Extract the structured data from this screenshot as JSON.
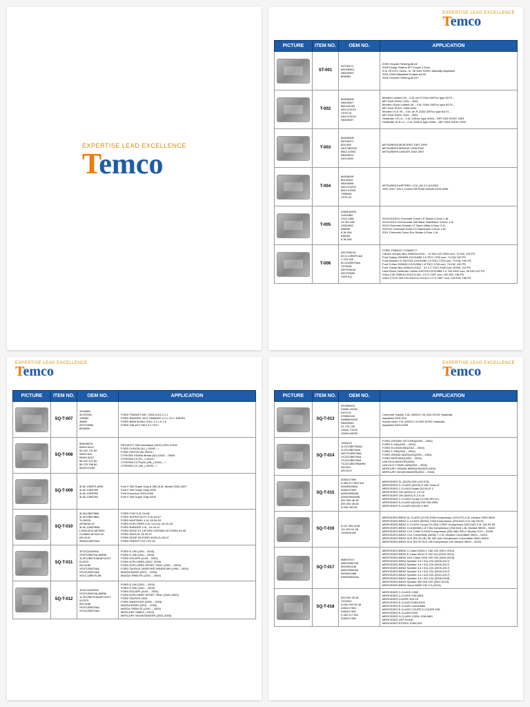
{
  "brand": {
    "tagline": "EXPERTISE LEAD EXCELLENCE",
    "name_t": "T",
    "name_rest": "emco"
  },
  "headers": {
    "picture": "PICTURE",
    "item": "ITEM NO.",
    "oem": "OEM NO.",
    "app": "APPLICATION"
  },
  "table_t": [
    {
      "item": "ST-001",
      "oem": "E5T08171\nMD336501\nN5405009\nM56081",
      "app": "2005 Chrysler Sebring All All\n2005 Dodge Stratus R/T Coupe 2-Door\n3.0L 2972CC 181cu. In. V6 GAS SOHC Naturally Aspirated\n2001-2005 Mitsubishi Eclipse All All\n2004 Chrysler Sebring All All *"
    },
    {
      "item": "T-002",
      "oem": "Md336482\nN5405007\n881242033\nADC474210\nC975-15\nADC474210\nN5405007",
      "app": "Montero Limited V6 – 3.5L vin R 215ci 3497cc type 6G74 –\nMFI GAS SOHC 2001 - 2005\nMontero Sport Limited V6 – 3.5L 215ci 3497cc type 6G74 –\nMFI GAS SOHC 1999-2003\nMontero XLS V6 – 3.0L vin R 215ci 3497cc type 6G74 –\nMFI GAS SOHC 2001 - 2002\nOutlander LS L4 – 2.4L 2351cc type 4G64 – MFI GAS SOHC 2003\nOutlander XLS L4 – 2.4L 2351cc type 4G64 – MFI GAS SOHC 2003"
    },
    {
      "item": "T-003",
      "oem": "Md343605\nE5T08471\n829-948\nAA17460020\n8812-42004\nN5405010\nEAS-5502",
      "app": "MITSUBISHI MONTERO 1997-1999\nMITSUBISHI MIRAGE 1998-2002\nMITSUBISHI LANCER 2002-2007"
    },
    {
      "item": "T-004",
      "oem": "Md336481\nMA-M004\nN5405006\nADC474203\n8812-42025\n7585006\nC975-10",
      "app": "MITSUBISHI AIRTREK I (CU_W) 2.0 (CU2W)\n1997-2007 100 4 Closed Off-Road Vehicle 2003-2006"
    },
    {
      "item": "T-005",
      "oem": "0280218254\n11301682\n1310-1682\n13 301 682\n13301682\n836006\n8 36 006\n836005\n8 36 005",
      "app": "2014/13/12/11 Chevrolet Cruze LS Sedan 4-Door 1.8L\n2014/13/12 /11Chevrolet Volt Base Hatchback 4-Door 1.4L\n2013 Chevrolet Orlando LT Sport Utility 4-Door 2.4L\n2013/12 Chevrolet Sonic LS Hatchback 4-Door 1.8L\n2011 Chevrolet Cruze Eco Sedan 4-Door 1.4L"
    },
    {
      "item": "T-006",
      "oem": "AFH70M-54\n6C11-12B579-AA\n1 376 235\n6C1112B579AA\n1376235\nAFH70M-54\nAFH70M54\n1920 KQ",
      "app": "FORD TRANSIT CONNECT\nCitroen Jumper Bus 2006/04-2011/... 12 903 120 3339 ccm, 74 KW, 100 PS\nFord Galaxy 2006/05-XXXX/MM 1.8 TDCi 1753 ccm, 74 KW 100 PS\nFord Mondeo IV 2007/03-XXXX/MM 1.8 TDCi 1753 ccm, 74 KW, 100 PS\nFord S-Max 2006/05-XXXX/MM 1.8 TDCi 1753 ccm, 74 KW, 100 PS\nFord Transit Bus 2006/04-2012/.. XX 2.2 TDCi 2198 ccm, 81KW, 110 PS\nLand Rover Defender Cabrio 2007/09-XXXX/MM 2.4 Td4 2402 ccm, 90 KW 122 PS\nVolvo C30 2006/10-2012/12 ALL 2.0 D 1997 ccm, 100 KW, 136 PS\nVolvo V70 III 2007/10-2012/12 D4 ALL 2.0 D 1997 ccm, 100 KW, 136 PS"
    }
  ],
  "table_sq_a": [
    {
      "item": "SQ-T-007",
      "oem": "1516668\n30757655\n135089\n38894\nAFH70M83\n8030830",
      "app": "FORD TRANSIT MK7 2006-2013 2.2 L\nFORD RANGER 2012 ONWARD 2.2 L 3.2 L DIESEL\nFORD BMW B-MAX 2012 1.0 1.5 1.6\nFORD GALAXY MK3 2.0 TDCI"
    },
    {
      "item": "SQ-T-008",
      "oem": "5WK96031\n5WK9 631Z\n96 422 121 80\n5WK9 631\n5WK9 631Z\n96 422 121 80\n96 275 336 80\n9642212180",
      "app": "PEUGEOT 206 Hatchback (2A/C) 2001-20011\nFORD FUSION (JU_) 02/08 – /\nFORD FIESTA Van 05/03-/\nCITROEN XSARA Break (N2) 03/01 – 05/06\nCITROEN C3 (FC_) 02/02-/\nCITROEN C3 Pluriel (HB_) 04/04 – /\nCITROEN C2 (JM_) 03/05 – /"
    },
    {
      "item": "SQ-T-009",
      "oem": "3L3Z-12B579-ARM\n3L3Z-12B579B\n3L3Z-12B579B\n3L3Z-12B579A",
      "app": "Ford F-350 Super Duty 8-363 (6.0L diesel) 2003-2007\nFord F-350 Super Duty 2005\nFord Excursion 2003-2005\nFord F-450 Super Duty 2003"
    },
    {
      "item": "SQ-T-010",
      "oem": "3L3A12B579BA\n3L3F12B579BA\n74-50031\nAFH60M-19\n3L3Z-12B579BA\nL3H513215 MF0930\n2133654 AF010140\nAFL5131\n3W4Z12B579AC",
      "app": "FORD F150 5.4L 04-08\nFORD SUPER DUTY 5.4L 05-07\nFORD MUSTANG 4.0L V6 06-09\nFORD EXPLORER 4.0L V4,4.6L V8 02-05\nFORD RANGER 2.3L, V4 04-07\nFORD EDGE 07-10FORD CROWN VICTORIA 04-05\nFORD 500/3.0L V6 05-07\nFORD EDGE 05-FORD 500/3.0L 05-07\nFORD FREESTYLE LTD 05-"
    },
    {
      "item": "SQ-T-011",
      "oem": "1F2213210R0A\nXF2F12B579A-ABRM\n1L2F12B579-BAAF10127\n512979\nAFL5155\nXF2F12B579AA\nXF2Z12B579AA\nXF2Z-12B579-AB",
      "app": "FORD E-150 (2001 - 2003)\nFORD E-250 (2001 - 2003)\nFORD ESCAPE (2001 - 2003)\nFORD EXPLORER (2002- 2003)\nFORD EXPLORER SPORT TRAC (2001 – 2003)\nFORD TAURUS 2003FORD WINDSTAR (1999 – 2003)\nMAZDA B4000 (2001 – 2003)\nMAZDA TRIBUTE (2001 – 2003)"
    },
    {
      "item": "SQ-T-012",
      "oem": "1F2213210R0A\nXF2F12B579A-ABRM\n1L2F12B579-BAAF10127\n512979\nAFL5155\nXF2F12B579AA\nXF2Z12B579AA",
      "app": "FORD E-150 (2001 – 2003)\nFORD E-250 (2001 – 2003)\nFORD ESCAPE (2001 – 2003)\nFORD EXPLORER SPORT TRAC (2001-2003)\nFORD TAURUS 2003\nFORD WINDSTAR (1999 – 2003)\nMAZDA B4000 (2001 – 2003)\nMAZDA TRIBUTE (2001 – 2003)\nMERCURY SABLE ( 2003)\nMERCURY MOUNTAINEER (2001-2003)"
    }
  ],
  "table_sq_b": [
    {
      "item": "SQ-T-013",
      "oem": "AFH55M13\n22695-2X000\nK975-01\n479500100\n94856000109\nN5409000\n91 176 135\n13400-77E00\n13400-64G00",
      "app": "Chevrolet Tracker 2.5L 2500CC V6 GAS DOHC Naturally\nAspirated 2001-004\nSuzuki Aerio 2.0L 2000CC l4 GAS DOHC Naturally\nAspirated 2003-2005"
    },
    {
      "item": "SQ-T-014",
      "oem": "7450019\n1L2Z12B579AAA\n1L2Z12B579AA\n3W7Z12B579BA\nYC2Z12B579AA\nYC2Z12B579AA\nYC2Z12B579BARM\nSU2341\nAFL5147",
      "app": "FORD CROWN VICTORIA(2003 – 2004)\nFORD E-150(2003 – 2003)\nFORD ECONOLINE(2002 – 2003)\nFORD F-150(2003 – 2003)\nFORD GRAND MARQUIS(2003 – 2004)\nFORD MUSTANG(2002 – 2004)\nLINCOLN AVIATOR(2003)\nLINCOLN TOWN CAR(2003 – 2004)\nMERCURY GRAND MARQUIS(2003-2004)\nMERCURY MOUNTAINEER(2002 – 2003)"
    },
    {
      "item": "SQ-T-015",
      "oem": "0280217509\n0 280 217 509 510\n00000940840\n0280137509\nA0000940848\nA00000940848\n000 094 08 48\n000 094 08 48\nA 000 094 08",
      "app": "MERCEDES SL (R129) 500 (129.076)\nMERCEDES C-CLASS (W210) E 280 Turbo-D\nMERCEDES C-CLASS Estate (S210) E 2\nMERCEDES 190 (W201) E 2.3-16\nMERCEDES 190 (W201) E 2.0-16\nMERCEDES C-CLASS Coupe (C140) SEC/CL\nMERCEDES S-CLASS (W140) 400 SEL0SEL\nMERCEDES S-CLASS (W140) S 600"
    },
    {
      "item": "SQ-T-016",
      "oem": "A 111 094 0148\n111 094 01 48\n1110940148",
      "app": "MERCEDES-BENZ SL CLASS (2129) E280 Kompressor (129.072) 2.3L 16valve 2003-05/01\nMERCEDES-BENZ C-CLASS (W202) C200 Kompressor (203.042) 2.0L 16v 95-00\nMERCEDES-BENZ C-CLASS Coupe (CL203) C230T Kompressor (203.042) 2.3L 16v 93-95\nMERCEDES-BENZ CLK(W208) 1.8 T16v Kompressor (208.344) 1.8L 16valve 98/03 – 06/02\nMERCEDES-BENZ CLK C208 CLK200 Kompressor (208.445) 200.0 16valve 97/3 – 02/06\nMERCEDES-BENZ CLK Convertible (A208) T 2.3L 16valve Convertible 99/03 – 03/03\nMERCEDES-BENZ SLK (R170) 18v SK 230 (16v Kompressor Convertible 96/01-04/04\nMERCEDES-BENZ SLK (R170) SLK 200 Kompressor (18 16valve 96/03 – 00/04"
    },
    {
      "item": "SQ-T-017",
      "oem": "5WK97917\nA6519050148\n6510900148\nA6510900048\n5549020468\nK6009053ZAA",
      "app": "MERCEDES-BENZ C-Class W204 C 180 CDI (2007-2014)\nMERCEDES-BENZ E-Class W212 E 200 CDI (2010-2013)\nMERCEDES-BENZ GLK-Class X204 200 CDI (2009-2015)\nMERCEDES-BENZ Sprinter 3.5 t 314 CDI (2006-2017)\nMERCEDES-BENZ Sprinter 3.5 t 313 CDI (2009-2017)\nMERCEDES-BENZ Sprinter 4.6 t 314 CDI (2009-2017)\nMERCEDES-BENZ Sprinter 3.5 t 314 CDI (2009-2017)\nMERCEDES-BENZ Sprinter 4.6 t 413 CDI (2010-2017)\nMERCEDES-BENZ Sprinter 4.6 t 413 CDI (2006-2018)\nMERCEDES-BENZ Sprinter 450 316 CDI (2007-2013)\nMERCEDES-BENZ Viano W639 CDI 2.0 (2013)"
    },
    {
      "item": "SQ-T-018",
      "oem": "000 094 05 48\n7410042\nA 000 094 05 48\n0280217501\n0280217501\n0 280 217 501\n0280217500",
      "app": "MERCEDES C-CLASS C280\nMERCEDES C-CLASS C36 AMG\nMERCEDES COUPE 300 CE\nMERCEDES E-CLASS E280,E320\nMERCEDES E-CLASS Convertible\nMERCEDES E-CLASS COUPE E COUPE E36\nMERCEDES E-CLASS E320\nMERCEDES G-CLASS G320L,G36 AMG\nMERCEDES OFF-ROAD\nMERCEDES ESTATE E36/C320"
    }
  ]
}
